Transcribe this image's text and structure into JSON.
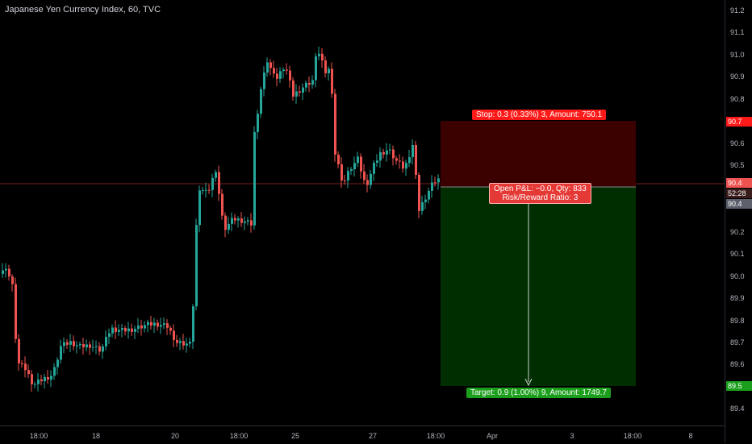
{
  "header": {
    "title": "Japanese Yen Currency Index, 60, TVC"
  },
  "price_axis": {
    "ticks": [
      "91.2",
      "91.1",
      "91.0",
      "90.9",
      "90.8",
      "90.7",
      "90.6",
      "90.5",
      "90.4",
      "90.3",
      "90.2",
      "90.1",
      "90.0",
      "89.9",
      "89.8",
      "89.7",
      "89.6",
      "89.5",
      "89.4"
    ],
    "badges": {
      "stop_price": "90.7",
      "current_price": "90.4",
      "countdown": "52:28",
      "entry_price": "90.4",
      "target_price": "89.5"
    }
  },
  "time_axis": {
    "ticks": [
      "18:00",
      "18",
      "20",
      "18:00",
      "25",
      "27",
      "18:00",
      "Apr",
      "3",
      "18:00",
      "8"
    ]
  },
  "position": {
    "stop_label": "Stop: 0.3 (0.33%) 3, Amount: 750.1",
    "target_label": "Target: 0.9 (1.00%) 9, Amount: 1749.7",
    "pl_label": "Open P&L: −0.0, Qty: 833",
    "rr_label": "Risk/Reward Ratio: 3"
  },
  "colors": {
    "up": "#26a69a",
    "down": "#ef5350",
    "stop_zone": "#3b0000",
    "target_zone": "#002e00",
    "stop_badge": "#ff1a1a",
    "target_badge": "#1b9e1b",
    "current_line": "#7a1c1c"
  }
}
